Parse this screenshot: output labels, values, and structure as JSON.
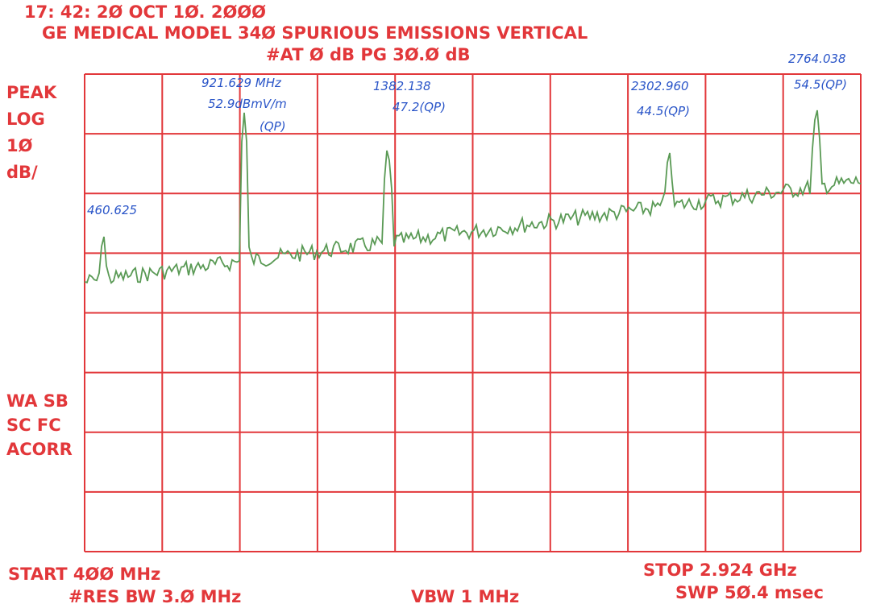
{
  "header": {
    "timestamp": "17: 42: 2Ø OCT 1Ø. 2ØØØ",
    "title": "GE MEDICAL MODEL 34Ø SPURIOUS EMISSIONS VERTICAL",
    "settings": "#AT Ø dB   PG 3Ø.Ø dB"
  },
  "side_labels": {
    "top": [
      "PEAK",
      "LOG",
      "1Ø",
      "dB/"
    ],
    "bottom": [
      "WA SB",
      "SC FC",
      "ACORR"
    ]
  },
  "annotations": [
    {
      "lines": [
        "460.625"
      ]
    },
    {
      "lines": [
        "921.629 MHz",
        "52.9dBmV/m",
        "(QP)"
      ]
    },
    {
      "lines": [
        "1382.138",
        "47.2(QP)"
      ]
    },
    {
      "lines": [
        "2302.960",
        "44.5(QP)"
      ]
    },
    {
      "lines": [
        "2764.038",
        "54.5(QP)"
      ]
    }
  ],
  "footer": {
    "start": "START 4ØØ MHz",
    "stop": "STOP 2.924 GHz",
    "res_bw": "#RES BW 3.Ø MHz",
    "vbw": "VBW 1 MHz",
    "sweep": "SWP 5Ø.4 msec"
  }
}
